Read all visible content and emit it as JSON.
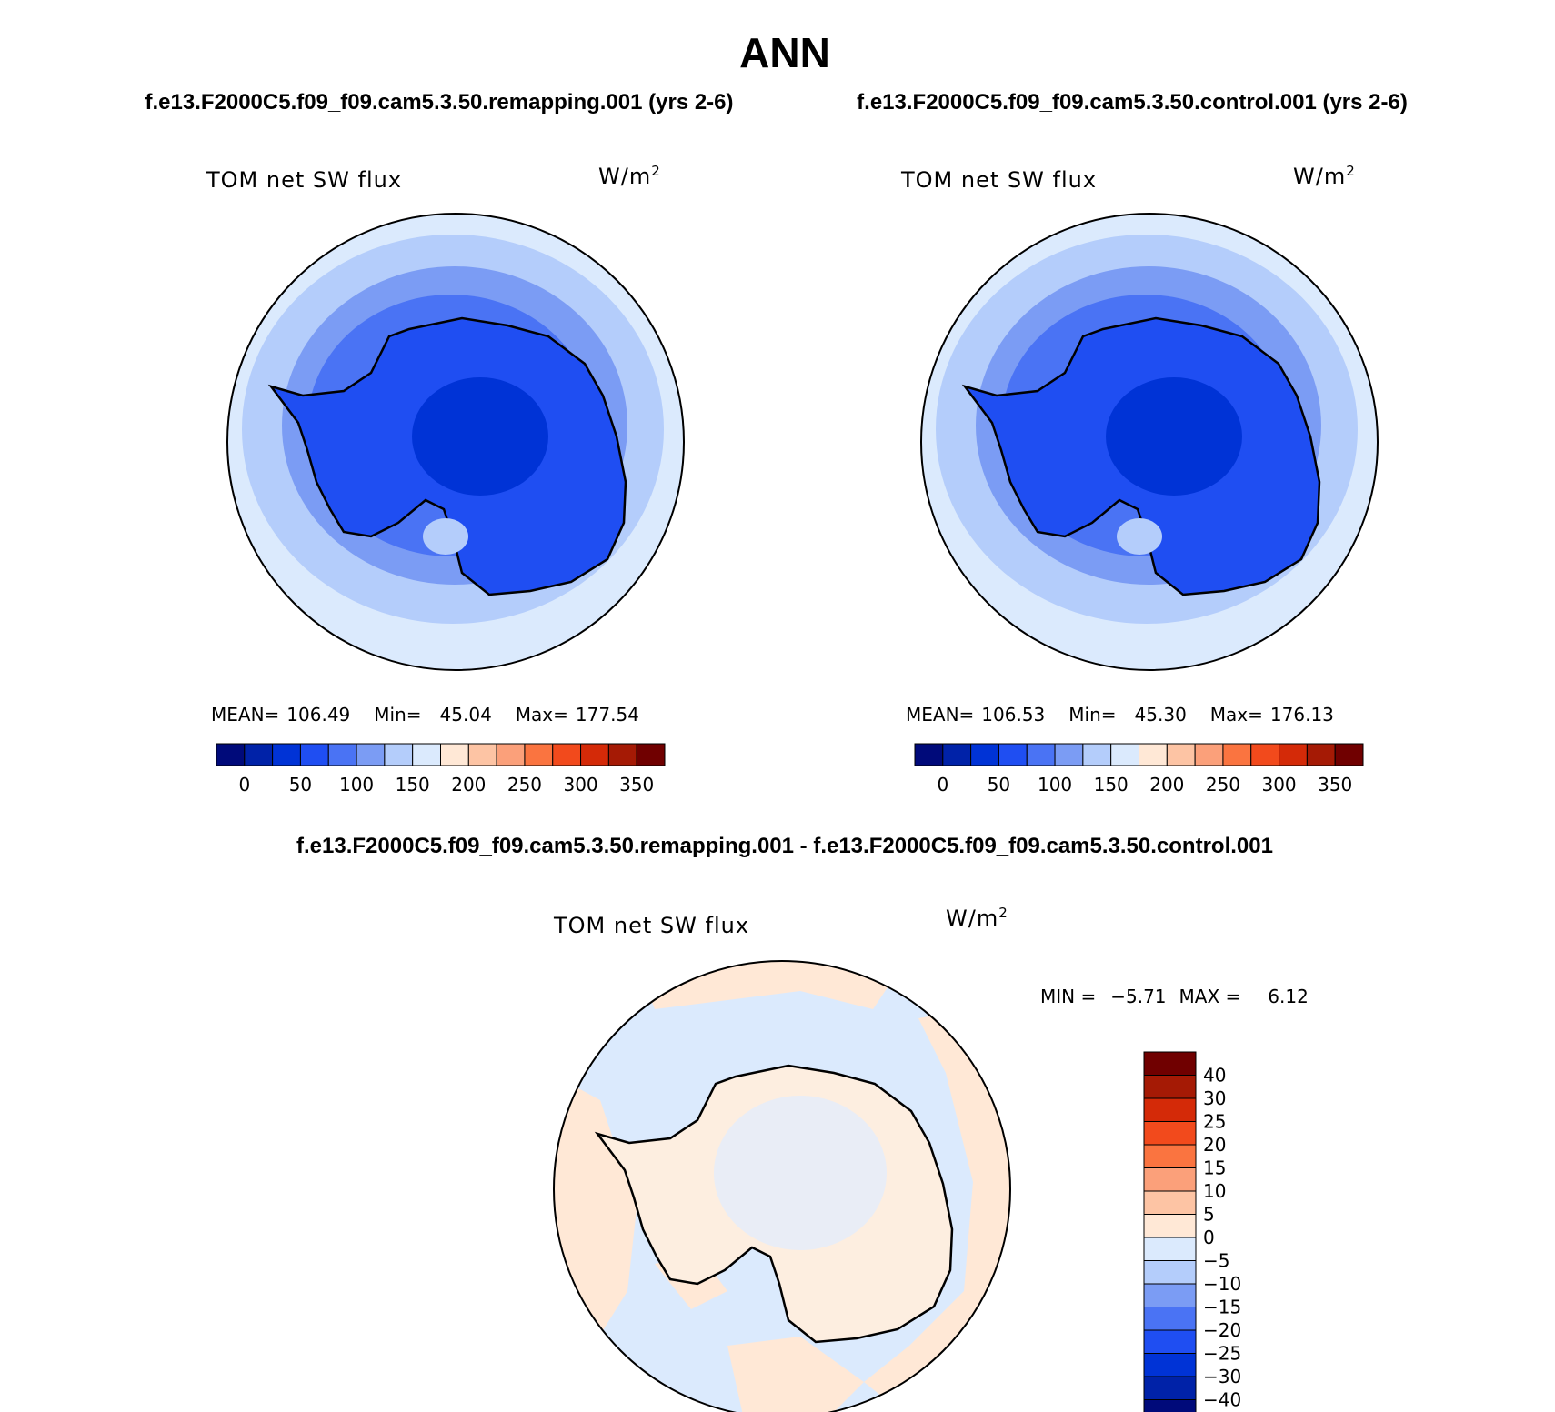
{
  "figure": {
    "title": "ANN",
    "case_left": "f.e13.F2000C5.f09_f09.cam5.3.50.remapping.001 (yrs 2-6)",
    "case_right": "f.e13.F2000C5.f09_f09.cam5.3.50.control.001 (yrs 2-6)",
    "case_diff": "f.e13.F2000C5.f09_f09.cam5.3.50.remapping.001 - f.e13.F2000C5.f09_f09.cam5.3.50.control.001"
  },
  "panels": {
    "left": {
      "variable": "TOM net SW flux",
      "units": "W/m",
      "units_sup": "2",
      "mean_label": "MEAN=",
      "mean_value": "106.49",
      "min_label": "Min=",
      "min_value": "45.04",
      "max_label": "Max=",
      "max_value": "177.54"
    },
    "right": {
      "variable": "TOM net SW flux",
      "units": "W/m",
      "units_sup": "2",
      "mean_label": "MEAN=",
      "mean_value": "106.53",
      "min_label": "Min=",
      "min_value": "45.30",
      "max_label": "Max=",
      "max_value": "176.13"
    },
    "diff": {
      "variable": "TOM net SW flux",
      "units": "W/m",
      "units_sup": "2",
      "min_label": "MIN =",
      "min_value": "−5.71",
      "max_label": "MAX =",
      "max_value": "6.12"
    }
  },
  "colorbars": {
    "field": {
      "colors": [
        "#000a7a",
        "#0022a8",
        "#0033d6",
        "#1f4ef2",
        "#4a73f4",
        "#7b9cf4",
        "#b4cdfb",
        "#dbeafd",
        "#ffe8d6",
        "#fdc4a4",
        "#fba07a",
        "#fa7440",
        "#f24a1c",
        "#d42a08",
        "#a51a05",
        "#700000"
      ],
      "tick_labels": [
        "0",
        "50",
        "100",
        "150",
        "200",
        "250",
        "300",
        "350"
      ]
    },
    "diff": {
      "colors_bottom_to_top": [
        "#000a7a",
        "#0022a8",
        "#0033d6",
        "#1f4ef2",
        "#4a73f4",
        "#7b9cf4",
        "#b4cdfb",
        "#dbeafd",
        "#ffe8d6",
        "#fdc4a4",
        "#fba07a",
        "#fa7440",
        "#f24a1c",
        "#d42a08",
        "#a51a05",
        "#700000"
      ],
      "tick_labels_top_to_bottom": [
        "40",
        "30",
        "25",
        "20",
        "15",
        "10",
        "5",
        "0",
        "−5",
        "−10",
        "−15",
        "−20",
        "−25",
        "−30",
        "−40"
      ]
    }
  },
  "map_colors": {
    "ring_outer": "#dbeafd",
    "ring_2": "#b4cdfb",
    "ring_3": "#7b9cf4",
    "ring_4": "#4a73f4",
    "continent": "#1f4ef2",
    "plateau": "#0033d6",
    "diff_neg": "#dbeafd",
    "diff_pos": "#ffe8d6"
  }
}
